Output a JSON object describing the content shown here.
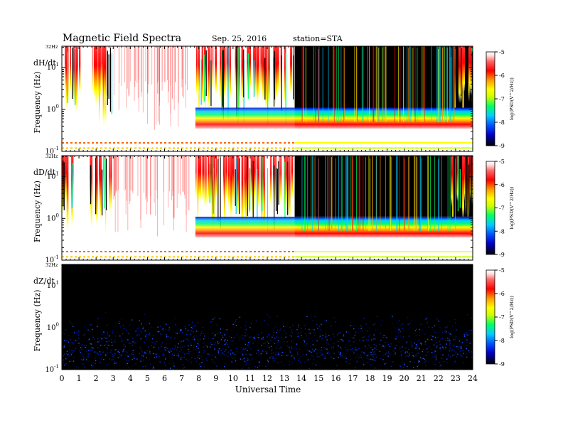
{
  "header": {
    "title": "Magnetic Field Spectra",
    "date": "Sep. 25, 2016",
    "station": "station=STA"
  },
  "chart_data": {
    "type": "heatmap",
    "xlabel": "Universal Time",
    "xlim": [
      0,
      24
    ],
    "x_ticks": [
      "0",
      "1",
      "2",
      "3",
      "4",
      "5",
      "6",
      "7",
      "8",
      "9",
      "10",
      "11",
      "12",
      "13",
      "14",
      "15",
      "16",
      "17",
      "18",
      "19",
      "20",
      "21",
      "22",
      "23",
      "24"
    ],
    "ylabel": "Frequency (Hz)",
    "y_scale": "log",
    "ylim": [
      0.1,
      32
    ],
    "y_ticks": [
      {
        "base": "10",
        "exp": "-1",
        "value": 0.1
      },
      {
        "base": "10",
        "exp": "0",
        "value": 1
      },
      {
        "base": "10",
        "exp": "1",
        "value": 10
      }
    ],
    "top_label": "32Hz",
    "colorbar": {
      "label": "log(PSD(V^2/Hz))",
      "ticks": [
        "-5",
        "-6",
        "-7",
        "-8",
        "-9"
      ],
      "range": [
        -9,
        -5
      ],
      "colors": [
        "#000000",
        "#0000cc",
        "#0055ff",
        "#00ccff",
        "#00ff66",
        "#ccff00",
        "#ffff00",
        "#ff9900",
        "#ff0000",
        "#ff6666",
        "#ffdddd",
        "#ffffff"
      ]
    },
    "panels": [
      {
        "component": "dH/dt",
        "dark_intervals": [
          [
            13.6,
            24
          ]
        ],
        "saturated_intervals": [
          [
            0,
            1
          ],
          [
            1.6,
            2.9
          ],
          [
            7.8,
            13.6
          ],
          [
            22.7,
            24
          ]
        ],
        "floor_band_hz": [
          0.35,
          1.1
        ],
        "trace_line_hz": [
          0.12,
          0.16
        ]
      },
      {
        "component": "dD/dt",
        "dark_intervals": [
          [
            13.6,
            24
          ]
        ],
        "saturated_intervals": [
          [
            0,
            1
          ],
          [
            1.6,
            2.9
          ],
          [
            7.8,
            13.6
          ],
          [
            22.7,
            24
          ]
        ],
        "floor_band_hz": [
          0.35,
          1.1
        ],
        "trace_line_hz": [
          0.12,
          0.16
        ]
      },
      {
        "component": "dZ/dt",
        "dark_intervals": [
          [
            0,
            24
          ]
        ],
        "saturated_intervals": [],
        "floor_band_hz": null,
        "trace_line_hz": null
      }
    ]
  }
}
